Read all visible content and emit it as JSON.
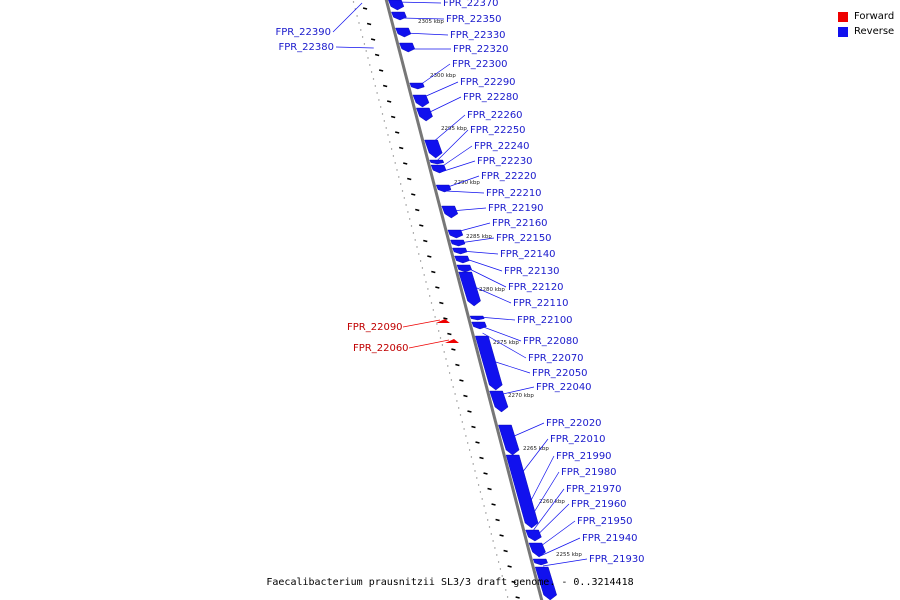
{
  "legend": {
    "forward_label": "Forward",
    "reverse_label": "Reverse",
    "forward_color": "#ee0000",
    "reverse_color": "#1111ee"
  },
  "caption": "Faecalibacterium prausnitzii SL3/3 draft genome. - 0..3214418",
  "colors": {
    "backbone": "#777777",
    "tick": "#000000",
    "dot": "#888888"
  },
  "scale_labels": [
    "2305 kbp",
    "2300 kbp",
    "2295 kbp",
    "2290 kbp",
    "2285 kbp",
    "2280 kbp",
    "2275 kbp",
    "2270 kbp",
    "2265 kbp",
    "2260 kbp",
    "2255 kbp"
  ],
  "genes": [
    {
      "id": "FPR_22390",
      "strand": "reverse"
    },
    {
      "id": "FPR_22380",
      "strand": "reverse"
    },
    {
      "id": "FPR_22370",
      "strand": "reverse"
    },
    {
      "id": "FPR_22350",
      "strand": "reverse"
    },
    {
      "id": "FPR_22330",
      "strand": "reverse"
    },
    {
      "id": "FPR_22320",
      "strand": "reverse"
    },
    {
      "id": "FPR_22300",
      "strand": "reverse"
    },
    {
      "id": "FPR_22290",
      "strand": "reverse"
    },
    {
      "id": "FPR_22280",
      "strand": "reverse"
    },
    {
      "id": "FPR_22260",
      "strand": "reverse"
    },
    {
      "id": "FPR_22250",
      "strand": "reverse"
    },
    {
      "id": "FPR_22240",
      "strand": "reverse"
    },
    {
      "id": "FPR_22230",
      "strand": "reverse"
    },
    {
      "id": "FPR_22220",
      "strand": "reverse"
    },
    {
      "id": "FPR_22210",
      "strand": "reverse"
    },
    {
      "id": "FPR_22190",
      "strand": "reverse"
    },
    {
      "id": "FPR_22160",
      "strand": "reverse"
    },
    {
      "id": "FPR_22150",
      "strand": "reverse"
    },
    {
      "id": "FPR_22140",
      "strand": "reverse"
    },
    {
      "id": "FPR_22130",
      "strand": "reverse"
    },
    {
      "id": "FPR_22120",
      "strand": "reverse"
    },
    {
      "id": "FPR_22110",
      "strand": "reverse"
    },
    {
      "id": "FPR_22100",
      "strand": "reverse"
    },
    {
      "id": "FPR_22090",
      "strand": "forward"
    },
    {
      "id": "FPR_22060",
      "strand": "forward"
    },
    {
      "id": "FPR_22080",
      "strand": "reverse"
    },
    {
      "id": "FPR_22070",
      "strand": "reverse"
    },
    {
      "id": "FPR_22050",
      "strand": "reverse"
    },
    {
      "id": "FPR_22040",
      "strand": "reverse"
    },
    {
      "id": "FPR_22020",
      "strand": "reverse"
    },
    {
      "id": "FPR_22010",
      "strand": "reverse"
    },
    {
      "id": "FPR_21990",
      "strand": "reverse"
    },
    {
      "id": "FPR_21980",
      "strand": "reverse"
    },
    {
      "id": "FPR_21970",
      "strand": "reverse"
    },
    {
      "id": "FPR_21960",
      "strand": "reverse"
    },
    {
      "id": "FPR_21950",
      "strand": "reverse"
    },
    {
      "id": "FPR_21940",
      "strand": "reverse"
    },
    {
      "id": "FPR_21930",
      "strand": "reverse"
    }
  ]
}
